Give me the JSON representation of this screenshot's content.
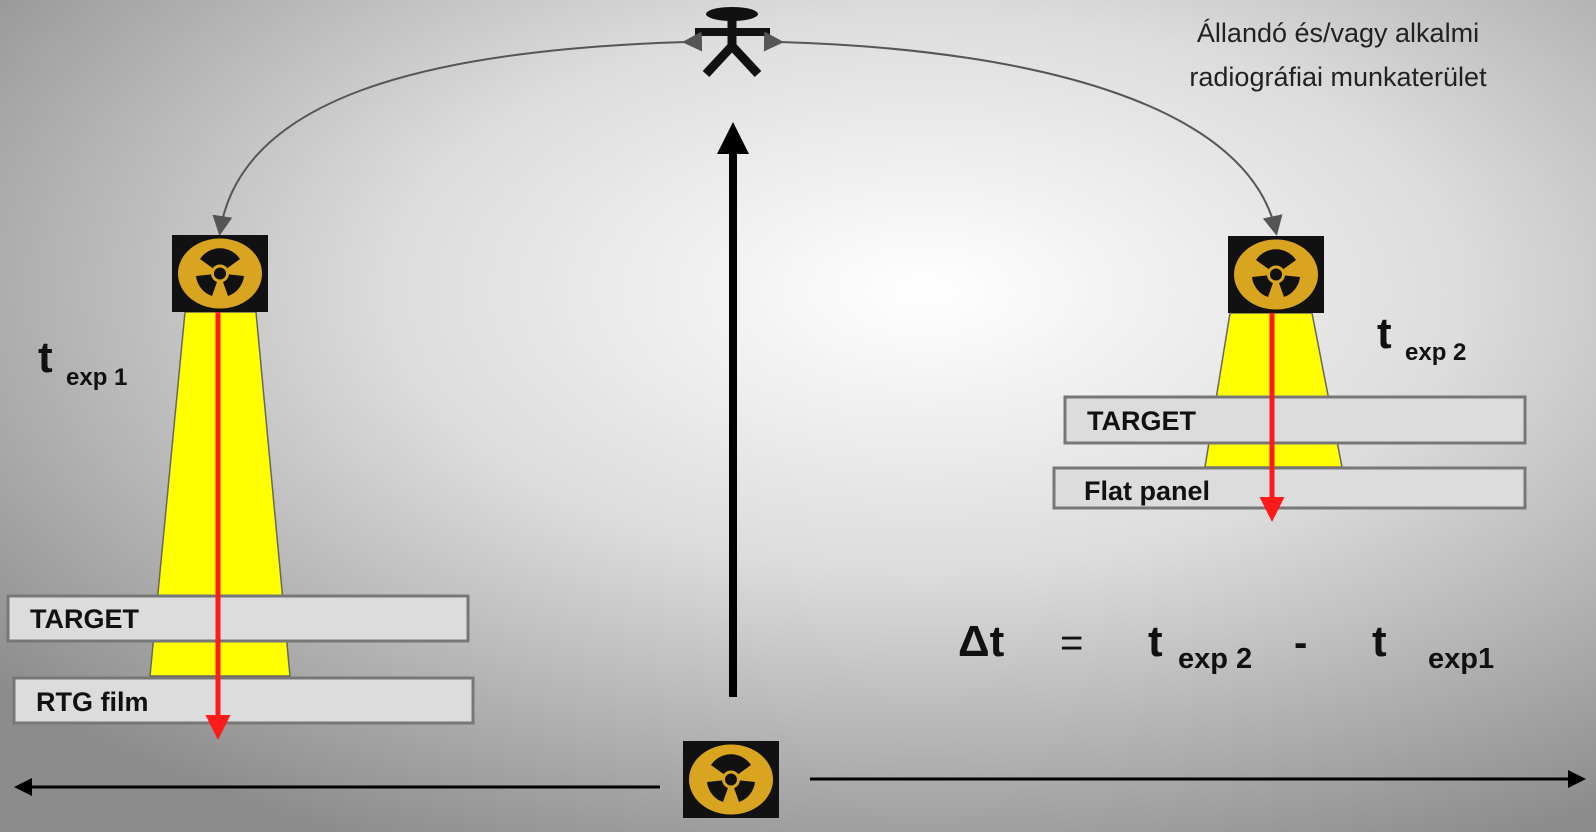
{
  "area_label": {
    "line1": "Állandó és/vagy alkalmi",
    "line2": "radiográfiai munkaterület"
  },
  "left": {
    "t": "t",
    "sub": "exp 1",
    "target": "TARGET",
    "detector": "RTG film"
  },
  "right": {
    "t": "t",
    "sub": "exp 2",
    "target": "TARGET",
    "detector": "Flat panel"
  },
  "formula": {
    "delta": "Δt",
    "equals": "=",
    "t1": "t",
    "sub1": "exp 2",
    "minus": "-",
    "t2": "t",
    "sub2": "exp1"
  }
}
